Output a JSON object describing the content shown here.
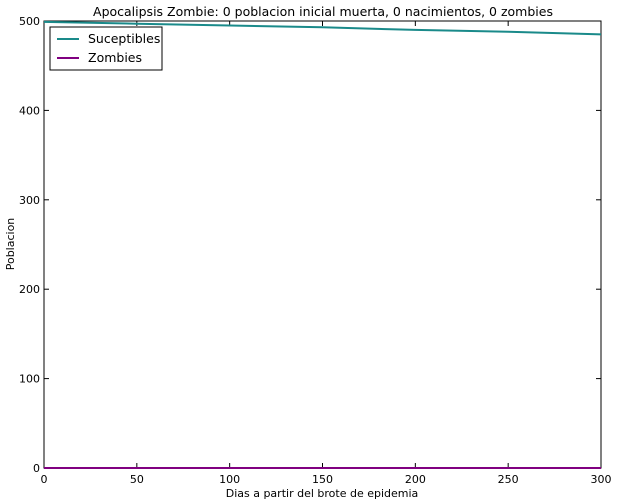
{
  "chart_data": {
    "type": "line",
    "title": "Apocalipsis Zombie: 0 poblacion inicial muerta, 0 nacimientos, 0 zombies",
    "xlabel": "Dias a partir del brote de epidemia",
    "ylabel": "Poblacion",
    "xlim": [
      0,
      300
    ],
    "ylim": [
      0,
      500
    ],
    "xticks": [
      0,
      50,
      100,
      150,
      200,
      250,
      300
    ],
    "yticks": [
      0,
      100,
      200,
      300,
      400,
      500
    ],
    "grid": false,
    "legend_position": "top-left",
    "series": [
      {
        "name": "Suceptibles",
        "color": "#1a8a8a",
        "x": [
          0,
          50,
          100,
          150,
          200,
          250,
          300
        ],
        "y": [
          499,
          497,
          495,
          493,
          490,
          488,
          485
        ]
      },
      {
        "name": "Zombies",
        "color": "#800080",
        "x": [
          0,
          50,
          100,
          150,
          200,
          250,
          300
        ],
        "y": [
          0,
          0,
          0,
          0,
          0,
          0,
          0
        ]
      }
    ]
  }
}
